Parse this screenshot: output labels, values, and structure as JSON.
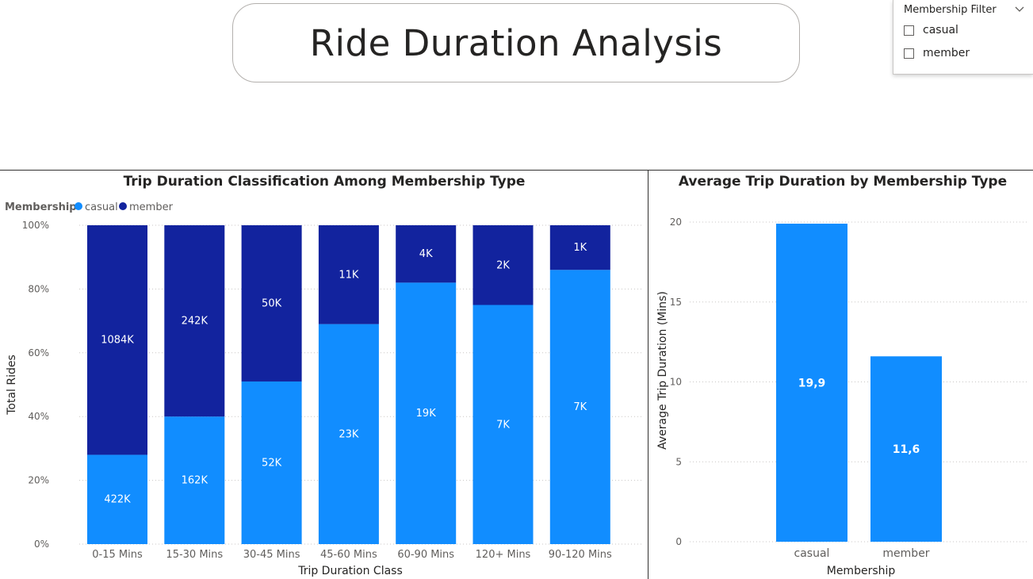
{
  "page": {
    "title": "Ride Duration Analysis"
  },
  "slicer": {
    "header": "Membership Filter",
    "options": [
      "casual",
      "member"
    ],
    "icon": "chevron-down-icon"
  },
  "colors": {
    "casual": "#118dff",
    "member": "#12239e"
  },
  "chart_data": [
    {
      "type": "bar",
      "stacking": "percent",
      "title": "Trip Duration Classification Among Membership Type",
      "xlabel": "Trip Duration Class",
      "ylabel": "Total Rides",
      "legend_title": "Membership",
      "legend_position": "top-left",
      "categories": [
        "0-15 Mins",
        "15-30 Mins",
        "30-45 Mins",
        "45-60 Mins",
        "60-90 Mins",
        "120+ Mins",
        "90-120 Mins"
      ],
      "series": [
        {
          "name": "casual",
          "share": [
            0.28,
            0.4,
            0.51,
            0.69,
            0.82,
            0.75,
            0.86
          ],
          "labels": [
            "422K",
            "162K",
            "52K",
            "23K",
            "19K",
            "7K",
            "7K"
          ]
        },
        {
          "name": "member",
          "share": [
            0.72,
            0.6,
            0.49,
            0.31,
            0.18,
            0.25,
            0.14
          ],
          "labels": [
            "1084K",
            "242K",
            "50K",
            "11K",
            "4K",
            "2K",
            "1K"
          ]
        }
      ],
      "yticks": [
        "0%",
        "20%",
        "40%",
        "60%",
        "80%",
        "100%"
      ],
      "ylim": [
        0,
        1
      ],
      "grid": true
    },
    {
      "type": "bar",
      "title": "Average Trip Duration by Membership Type",
      "xlabel": "Membership",
      "ylabel": "Average Trip Duration (Mins)",
      "categories": [
        "casual",
        "member"
      ],
      "values": [
        19.9,
        11.6
      ],
      "labels": [
        "19,9",
        "11,6"
      ],
      "yticks": [
        "0",
        "5",
        "10",
        "15",
        "20"
      ],
      "ylim": [
        0,
        20
      ],
      "grid": true
    }
  ]
}
